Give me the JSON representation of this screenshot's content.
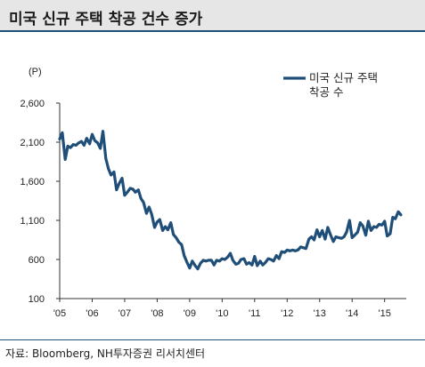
{
  "header": {
    "title": "미국 신규 주택 착공 건수 증가"
  },
  "footer": {
    "source": "자료: Bloomberg, NH투자증권 리서치센터"
  },
  "chart_data": {
    "type": "line",
    "title": "미국 신규 주택 착공 건수 증가",
    "unit": "(P)",
    "ylim": [
      100,
      2600
    ],
    "yticks": [
      100,
      600,
      1100,
      1600,
      2100,
      2600
    ],
    "ytick_labels": [
      "100",
      "600",
      "1,100",
      "1,600",
      "2,100",
      "2,600"
    ],
    "xlim": [
      2005,
      2015.667
    ],
    "xticks": [
      2005,
      2006,
      2007,
      2008,
      2009,
      2010,
      2011,
      2012,
      2013,
      2014,
      2015
    ],
    "xtick_labels": [
      "'05",
      "'06",
      "'07",
      "'08",
      "'09",
      "'10",
      "'11",
      "'12",
      "'13",
      "'14",
      "'15"
    ],
    "legend": {
      "position": "top-right",
      "lines": [
        "미국 신규 주택",
        "착공 수"
      ]
    },
    "colors": {
      "line": "#1f4e79"
    },
    "series": [
      {
        "name": "미국 신규 주택 착공 수",
        "x": [
          2005.0,
          2005.08,
          2005.17,
          2005.25,
          2005.33,
          2005.42,
          2005.5,
          2005.58,
          2005.67,
          2005.75,
          2005.83,
          2005.92,
          2006.0,
          2006.08,
          2006.17,
          2006.25,
          2006.33,
          2006.42,
          2006.5,
          2006.58,
          2006.67,
          2006.75,
          2006.83,
          2006.92,
          2007.0,
          2007.08,
          2007.17,
          2007.25,
          2007.33,
          2007.42,
          2007.5,
          2007.58,
          2007.67,
          2007.75,
          2007.83,
          2007.92,
          2008.0,
          2008.08,
          2008.17,
          2008.25,
          2008.33,
          2008.42,
          2008.5,
          2008.58,
          2008.67,
          2008.75,
          2008.83,
          2008.92,
          2009.0,
          2009.08,
          2009.17,
          2009.25,
          2009.33,
          2009.42,
          2009.5,
          2009.58,
          2009.67,
          2009.75,
          2009.83,
          2009.92,
          2010.0,
          2010.08,
          2010.17,
          2010.25,
          2010.33,
          2010.42,
          2010.5,
          2010.58,
          2010.67,
          2010.75,
          2010.83,
          2010.92,
          2011.0,
          2011.08,
          2011.17,
          2011.25,
          2011.33,
          2011.42,
          2011.5,
          2011.58,
          2011.67,
          2011.75,
          2011.83,
          2011.92,
          2012.0,
          2012.08,
          2012.17,
          2012.25,
          2012.33,
          2012.42,
          2012.5,
          2012.58,
          2012.67,
          2012.75,
          2012.83,
          2012.92,
          2013.0,
          2013.08,
          2013.17,
          2013.25,
          2013.33,
          2013.42,
          2013.5,
          2013.58,
          2013.67,
          2013.75,
          2013.83,
          2013.92,
          2014.0,
          2014.08,
          2014.17,
          2014.25,
          2014.33,
          2014.42,
          2014.5,
          2014.58,
          2014.67,
          2014.75,
          2014.83,
          2014.92,
          2015.0,
          2015.08,
          2015.17,
          2015.25,
          2015.33,
          2015.42,
          2015.5
        ],
        "values": [
          2140,
          2220,
          1880,
          2050,
          2030,
          2070,
          2060,
          2090,
          2110,
          2060,
          2150,
          2080,
          2200,
          2120,
          2090,
          2020,
          2240,
          1890,
          1760,
          1680,
          1720,
          1490,
          1570,
          1640,
          1420,
          1460,
          1510,
          1500,
          1460,
          1490,
          1380,
          1330,
          1190,
          1270,
          1180,
          1010,
          1080,
          1110,
          970,
          1020,
          980,
          1070,
          920,
          880,
          820,
          790,
          650,
          560,
          490,
          580,
          520,
          480,
          550,
          590,
          580,
          590,
          590,
          530,
          590,
          580,
          610,
          600,
          630,
          680,
          590,
          540,
          550,
          600,
          610,
          540,
          560,
          530,
          640,
          520,
          580,
          530,
          560,
          610,
          600,
          580,
          650,
          610,
          700,
          690,
          720,
          710,
          720,
          710,
          720,
          760,
          750,
          740,
          860,
          890,
          850,
          980,
          890,
          970,
          860,
          1010,
          920,
          830,
          890,
          880,
          870,
          890,
          950,
          1100,
          880,
          910,
          950,
          1070,
          1030,
          910,
          1090,
          970,
          1020,
          1010,
          1050,
          1040,
          1090,
          900,
          930,
          1140,
          1120,
          1210,
          1170
        ]
      }
    ]
  }
}
